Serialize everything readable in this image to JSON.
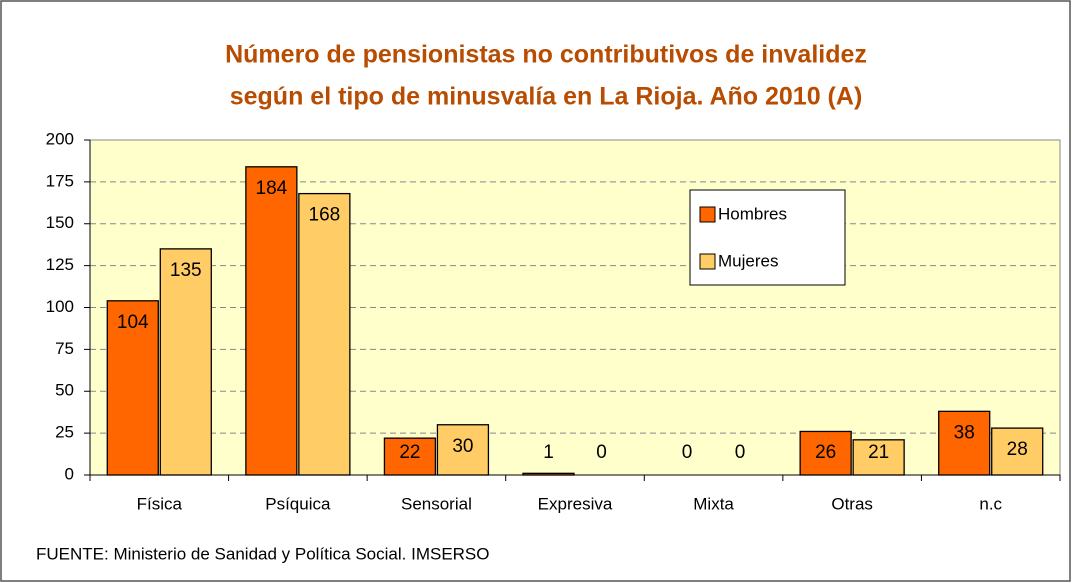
{
  "chart_data": {
    "type": "bar",
    "title": [
      "Número de pensionistas no contributivos de invalidez",
      "según el tipo de minusvalía en La Rioja. Año 2010 (A)"
    ],
    "categories": [
      "Física",
      "Psíquica",
      "Sensorial",
      "Expresiva",
      "Mixta",
      "Otras",
      "n.c"
    ],
    "series": [
      {
        "name": "Hombres",
        "color": "#ff6600",
        "values": [
          104,
          184,
          22,
          1,
          0,
          26,
          38
        ]
      },
      {
        "name": "Mujeres",
        "color": "#ffcc66",
        "values": [
          135,
          168,
          30,
          0,
          0,
          21,
          28
        ]
      }
    ],
    "ylim": [
      0,
      200
    ],
    "yticks": [
      0,
      25,
      50,
      75,
      100,
      125,
      150,
      175,
      200
    ],
    "grid": true,
    "plot_background": "#ffffcc",
    "source": "FUENTE: Ministerio de Sanidad y Política Social. IMSERSO"
  }
}
